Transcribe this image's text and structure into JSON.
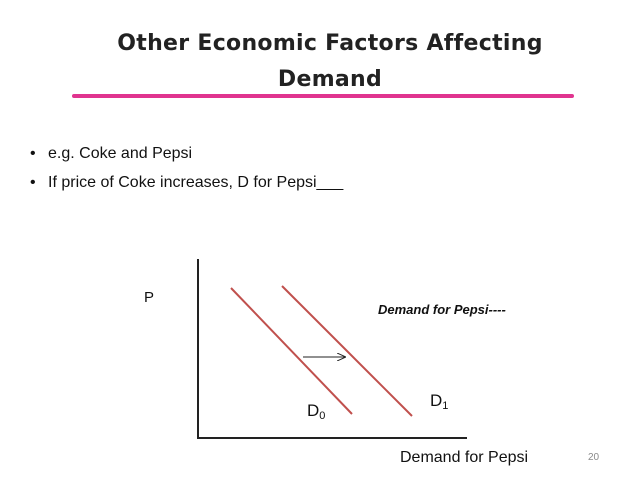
{
  "slide": {
    "title_line1": "Other Economic Factors Affecting",
    "title_line2": "Demand",
    "bullets": [
      {
        "text": "e.g. Coke  and  Pepsi"
      },
      {
        "text": "If price of Coke  increases, D for  Pepsi___"
      }
    ],
    "page_number": "20"
  },
  "graph": {
    "y_axis_label": "P",
    "x_axis_label": "Demand for Pepsi",
    "annotation": "Demand for Pepsi----",
    "curves": [
      {
        "letter": "D",
        "sub": "0",
        "color": "#c0504d"
      },
      {
        "letter": "D",
        "sub": "1",
        "color": "#c0504d"
      }
    ],
    "shift_arrow": "rightward shift from D0 to D1"
  },
  "colors": {
    "title_rule": "#e0348f",
    "curve": "#c0504d",
    "axis": "#222222"
  }
}
